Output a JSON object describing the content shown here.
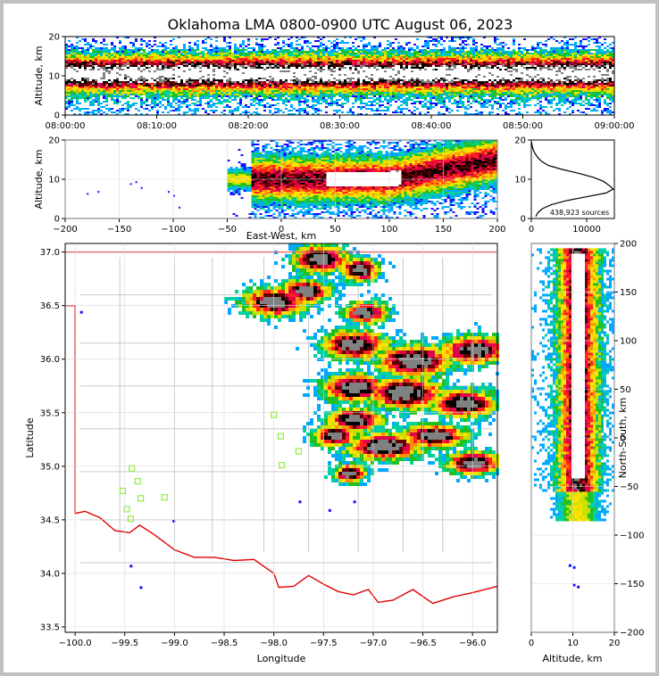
{
  "title": "Oklahoma LMA 0800-0900 UTC August 06, 2023",
  "colors": {
    "frame": "#c0c0c0",
    "state_border": "#e00000",
    "county_lines": "#c8c8c8",
    "stations": "#90ee40",
    "density_scale": [
      "#1010ff",
      "#00a8ff",
      "#00d0a0",
      "#20c020",
      "#c8e000",
      "#ffe000",
      "#ff9000",
      "#ff2020",
      "#e0004a",
      "#600000",
      "#000000",
      "#808080",
      "#ffffff"
    ]
  },
  "chart_data": [
    {
      "id": "time-altitude",
      "type": "heatmap",
      "title": "",
      "xlabel": "",
      "ylabel": "Altitude, km",
      "x_ticks": [
        "08:00:00",
        "08:10:00",
        "08:20:00",
        "08:30:00",
        "08:40:00",
        "08:50:00",
        "09:00:00"
      ],
      "y_ticks": [
        0,
        10,
        20
      ],
      "xlim": [
        "08:00:00",
        "09:00:00"
      ],
      "ylim": [
        0,
        20
      ],
      "grid": true,
      "peak_altitude_km": 10.5
    },
    {
      "id": "east-west-altitude",
      "type": "heatmap",
      "xlabel": "East-West, km",
      "ylabel": "Altitude, km",
      "x_ticks": [
        -200,
        -150,
        -100,
        -50,
        0,
        50,
        100,
        150,
        200
      ],
      "y_ticks": [
        0,
        10,
        20
      ],
      "xlim": [
        -200,
        200
      ],
      "ylim": [
        0,
        20
      ],
      "grid": true,
      "core": {
        "x": [
          40,
          110
        ],
        "altitude_km": 10
      }
    },
    {
      "id": "altitude-histogram",
      "type": "line",
      "xlabel": "",
      "ylabel": "",
      "x_ticks": [
        0,
        10000
      ],
      "y_ticks": [
        0,
        10,
        20
      ],
      "xlim": [
        0,
        15000
      ],
      "ylim": [
        0,
        20
      ],
      "annotation": "438,923 sources",
      "altitude": [
        0.5,
        1.5,
        2.5,
        3.5,
        4.5,
        5.5,
        6.5,
        7.5,
        8.5,
        9.5,
        10.5,
        11.5,
        12.5,
        13.5,
        14.5,
        15.5,
        16.5,
        17.5,
        18.5,
        19.5
      ],
      "counts": [
        800,
        1200,
        2000,
        3600,
        6200,
        9800,
        13500,
        14800,
        14000,
        13000,
        11200,
        8600,
        5600,
        3100,
        1900,
        1200,
        700,
        350,
        150,
        50
      ]
    },
    {
      "id": "plan-view",
      "type": "scatter",
      "xlabel": "Longitude",
      "ylabel": "Latitude",
      "x_ticks": [
        -100.0,
        -99.5,
        -99.0,
        -98.5,
        -98.0,
        -97.5,
        -97.0,
        -96.5,
        -96.0
      ],
      "y_ticks": [
        33.5,
        34.0,
        34.5,
        35.0,
        35.5,
        36.0,
        36.5,
        37.0
      ],
      "xlim": [
        -100.1,
        -95.75
      ],
      "ylim": [
        33.45,
        37.08
      ],
      "grid": true,
      "stations": [
        {
          "lon": -98.0,
          "lat": 35.48
        },
        {
          "lon": -97.93,
          "lat": 35.28
        },
        {
          "lon": -97.92,
          "lat": 35.01
        },
        {
          "lon": -97.75,
          "lat": 35.14
        },
        {
          "lon": -99.43,
          "lat": 34.98
        },
        {
          "lon": -99.37,
          "lat": 34.86
        },
        {
          "lon": -99.52,
          "lat": 34.77
        },
        {
          "lon": -99.34,
          "lat": 34.7
        },
        {
          "lon": -99.1,
          "lat": 34.71
        },
        {
          "lon": -99.48,
          "lat": 34.6
        },
        {
          "lon": -99.44,
          "lat": 34.51
        }
      ]
    },
    {
      "id": "north-south-altitude",
      "type": "heatmap",
      "xlabel": "Altitude, km",
      "ylabel": "North-South, km",
      "x_ticks": [
        0,
        10,
        20
      ],
      "y_ticks": [
        -200,
        -150,
        -100,
        -50,
        0,
        50,
        100,
        150,
        200
      ],
      "xlim": [
        0,
        20
      ],
      "ylim": [
        -200,
        200
      ],
      "grid": true,
      "core": {
        "y": [
          -40,
          190
        ],
        "altitude_km": 11
      }
    }
  ]
}
